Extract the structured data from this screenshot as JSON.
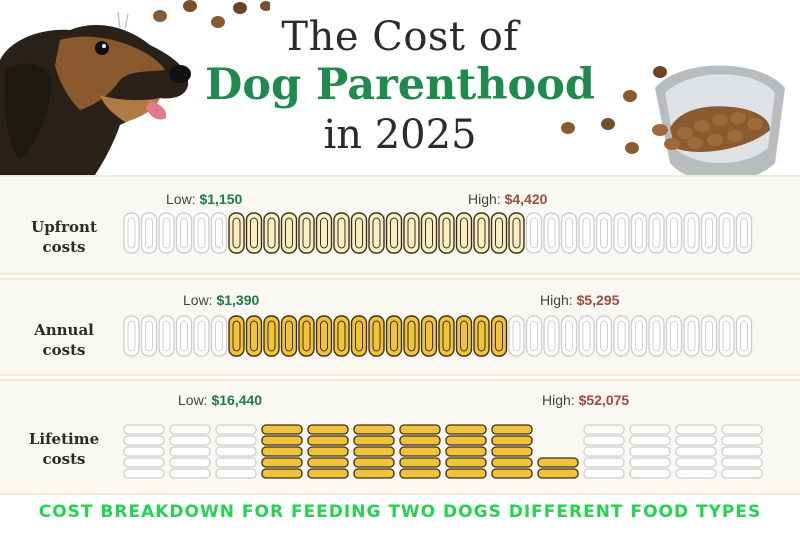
{
  "header": {
    "title_line1": "The Cost of",
    "title_line2": "Dog Parenthood",
    "title_line3": "in 2025"
  },
  "colors": {
    "accent_green": "#1e8a4c",
    "low_value": "#1e7a46",
    "high_value": "#a04a3c",
    "coin_gold": "#f2c33a",
    "coin_cream": "#fbeec2",
    "footer_green": "#25d34f"
  },
  "chart_data": [
    {
      "type": "bar",
      "label_line1": "Upfront",
      "label_line2": "costs",
      "low_label": "Low:",
      "low_text": "$1,150",
      "high_label": "High:",
      "high_text": "$4,420",
      "low": 1150,
      "high": 4420,
      "scale_max": 7000
    },
    {
      "type": "bar",
      "label_line1": "Annual",
      "label_line2": "costs",
      "low_label": "Low:",
      "low_text": "$1,390",
      "high_label": "High:",
      "high_text": "$5,295",
      "low": 1390,
      "high": 5295,
      "scale_max": 8500
    },
    {
      "type": "bar",
      "label_line1": "Lifetime",
      "label_line2": "costs",
      "low_label": "Low:",
      "low_text": "$16,440",
      "high_label": "High:",
      "high_text": "$52,075",
      "low": 16440,
      "high": 52075,
      "scale_max": 80000
    }
  ],
  "footer": {
    "caption": "COST BREAKDOWN FOR FEEDING TWO DOGS DIFFERENT FOOD TYPES"
  }
}
